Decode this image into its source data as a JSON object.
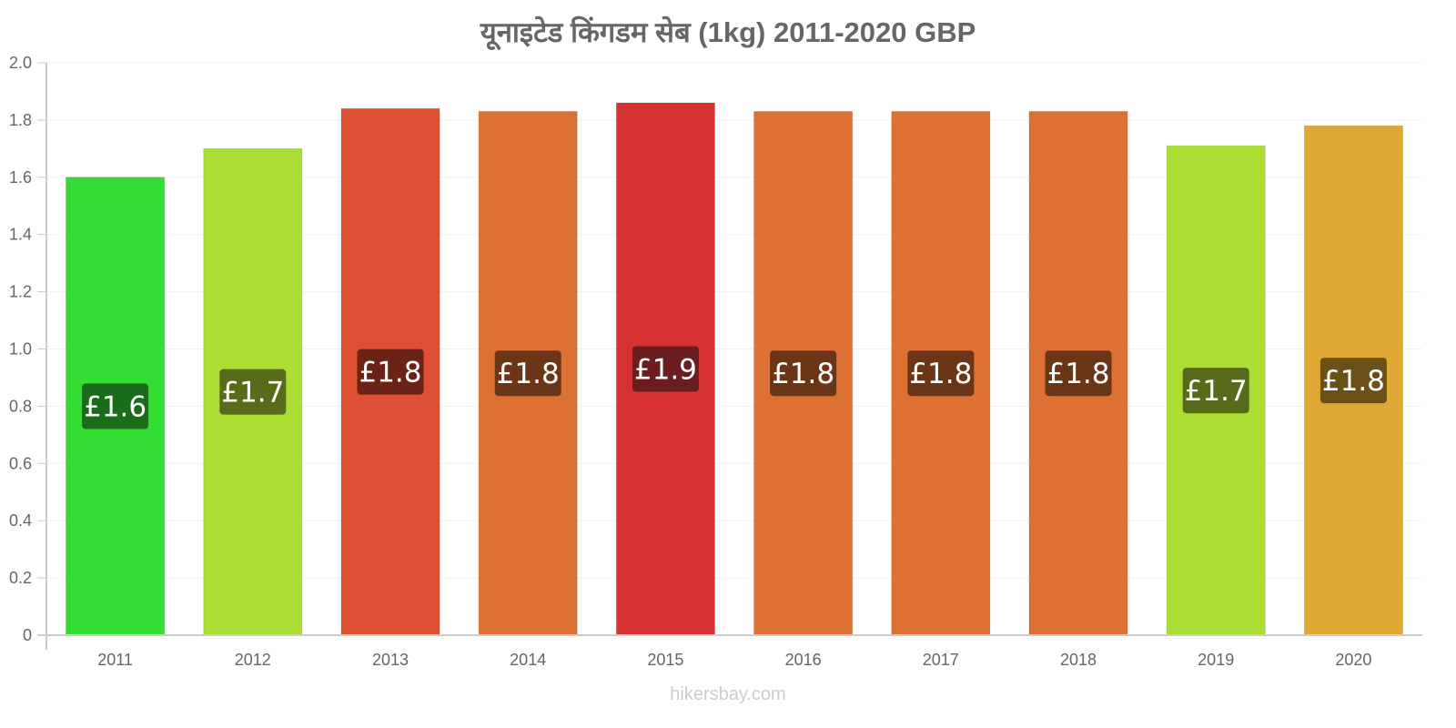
{
  "chart_data": {
    "type": "bar",
    "title": "यूनाइटेड   किंगडम   सेब   (1kg) 2011-2020 GBP",
    "xlabel": "",
    "ylabel": "",
    "ylim": [
      0,
      2.0
    ],
    "yticks": [
      0,
      0.2,
      0.4,
      0.6,
      0.8,
      1.0,
      1.2,
      1.4,
      1.6,
      1.8,
      2.0
    ],
    "ytick_labels": [
      "0",
      "0.2",
      "0.4",
      "0.6",
      "0.8",
      "1.0",
      "1.2",
      "1.4",
      "1.6",
      "1.8",
      "2.0"
    ],
    "grid": true,
    "legend": "none",
    "categories": [
      "2011",
      "2012",
      "2013",
      "2014",
      "2015",
      "2016",
      "2017",
      "2018",
      "2019",
      "2020"
    ],
    "values": [
      1.6,
      1.7,
      1.84,
      1.83,
      1.86,
      1.83,
      1.83,
      1.83,
      1.71,
      1.78
    ],
    "data_labels": [
      "£1.6",
      "£1.7",
      "£1.8",
      "£1.8",
      "£1.9",
      "£1.8",
      "£1.8",
      "£1.8",
      "£1.7",
      "£1.8"
    ],
    "bar_colors": [
      "#33dd33",
      "#aade33",
      "#dd5033",
      "#dd7033",
      "#d63232",
      "#dd7033",
      "#dd7033",
      "#dd7033",
      "#aade33",
      "#dda833"
    ],
    "label_bg_colors": [
      "#1a6b1a",
      "#586b1a",
      "#6b2318",
      "#6b3518",
      "#6b1c1c",
      "#6b3518",
      "#6b3518",
      "#6b3518",
      "#586b1a",
      "#6b5018"
    ]
  },
  "watermark": "hikersbay.com"
}
